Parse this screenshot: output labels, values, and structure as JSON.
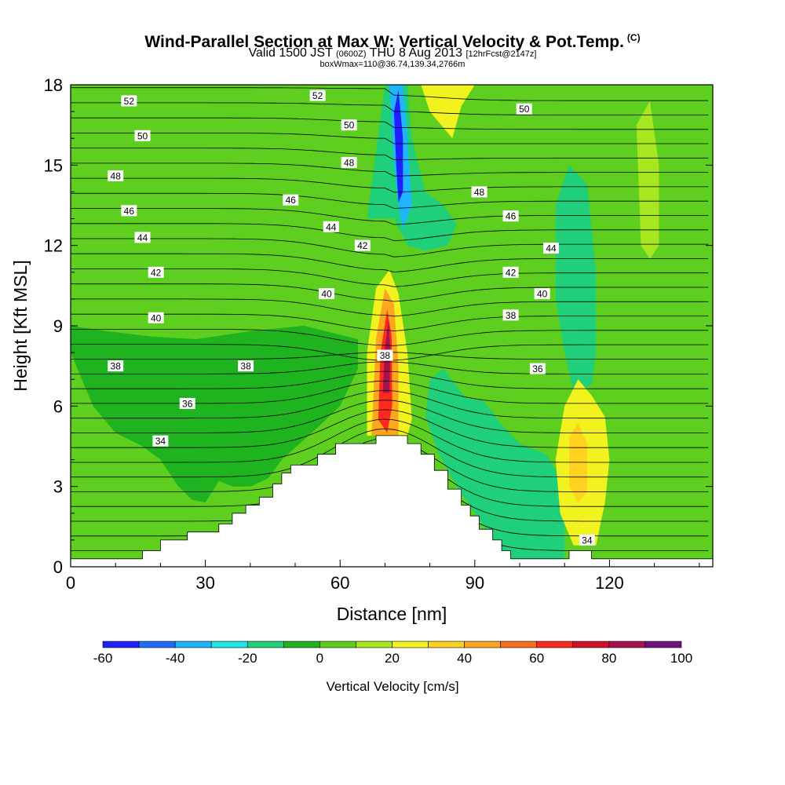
{
  "title": "Wind-Parallel Section at Max W: Vertical Velocity & Pot.Temp.",
  "title_tag": "(C)",
  "subtitle_a": "Valid 1500 JST",
  "subtitle_b": "(0600Z)",
  "subtitle_c": "THU 8 Aug 2013",
  "subtitle_d": "[12hrFcst@2147z]",
  "subtitle2": "boxWmax=110@36.74,139.34,2766m",
  "chart_data": {
    "type": "heatmap",
    "description_fields": "filled contours of vertical velocity with overlaid potential temperature contour lines",
    "xlabel": "Distance [nm]",
    "ylabel": "Height [Kft MSL]",
    "xlim": [
      0,
      143
    ],
    "ylim": [
      0,
      18
    ],
    "xticks": [
      0,
      30,
      60,
      90,
      120
    ],
    "yticks": [
      0,
      3,
      6,
      9,
      12,
      15,
      18
    ],
    "colorbar": {
      "title": "Vertical Velocity [cm/s]",
      "levels": [
        -60,
        -50,
        -40,
        -30,
        -20,
        -10,
        0,
        10,
        20,
        30,
        40,
        50,
        60,
        70,
        80,
        90,
        100
      ],
      "tick_labels": [
        "-60",
        "-40",
        "-20",
        "0",
        "20",
        "40",
        "60",
        "80",
        "100"
      ],
      "colors": [
        "#1f1fff",
        "#1f6cff",
        "#1fb4ff",
        "#1fe6e6",
        "#1fcf7a",
        "#1fb41f",
        "#5fcf1f",
        "#a8e61f",
        "#f2f21f",
        "#ffd21f",
        "#ffa61f",
        "#ff6e1f",
        "#ff2a1f",
        "#d2102a",
        "#a8104f",
        "#6e1080"
      ]
    },
    "theta_contour_labels": [
      {
        "value": "52",
        "x": 13,
        "y": 17.4
      },
      {
        "value": "52",
        "x": 55,
        "y": 17.6
      },
      {
        "value": "50",
        "x": 16,
        "y": 16.1
      },
      {
        "value": "50",
        "x": 62,
        "y": 16.5
      },
      {
        "value": "50",
        "x": 101,
        "y": 17.1
      },
      {
        "value": "48",
        "x": 10,
        "y": 14.6
      },
      {
        "value": "48",
        "x": 62,
        "y": 15.1
      },
      {
        "value": "48",
        "x": 91,
        "y": 14.0
      },
      {
        "value": "46",
        "x": 13,
        "y": 13.3
      },
      {
        "value": "46",
        "x": 49,
        "y": 13.7
      },
      {
        "value": "46",
        "x": 98,
        "y": 13.1
      },
      {
        "value": "44",
        "x": 16,
        "y": 12.3
      },
      {
        "value": "44",
        "x": 58,
        "y": 12.7
      },
      {
        "value": "44",
        "x": 107,
        "y": 11.9
      },
      {
        "value": "42",
        "x": 65,
        "y": 12.0
      },
      {
        "value": "42",
        "x": 19,
        "y": 11.0
      },
      {
        "value": "42",
        "x": 98,
        "y": 11.0
      },
      {
        "value": "40",
        "x": 57,
        "y": 10.2
      },
      {
        "value": "40",
        "x": 19,
        "y": 9.3
      },
      {
        "value": "40",
        "x": 105,
        "y": 10.2
      },
      {
        "value": "38",
        "x": 98,
        "y": 9.4
      },
      {
        "value": "38",
        "x": 10,
        "y": 7.5
      },
      {
        "value": "38",
        "x": 39,
        "y": 7.5
      },
      {
        "value": "38",
        "x": 70,
        "y": 7.9
      },
      {
        "value": "36",
        "x": 104,
        "y": 7.4
      },
      {
        "value": "36",
        "x": 26,
        "y": 6.1
      },
      {
        "value": "34",
        "x": 20,
        "y": 4.7
      },
      {
        "value": "34",
        "x": 115,
        "y": 1.0
      }
    ],
    "terrain_profile_kft": [
      [
        0,
        0.3
      ],
      [
        16,
        0.3
      ],
      [
        16,
        0.6
      ],
      [
        20,
        0.6
      ],
      [
        20,
        1.0
      ],
      [
        26,
        1.0
      ],
      [
        26,
        1.3
      ],
      [
        33,
        1.3
      ],
      [
        33,
        1.6
      ],
      [
        36,
        1.6
      ],
      [
        36,
        2.0
      ],
      [
        39,
        2.0
      ],
      [
        39,
        2.3
      ],
      [
        42,
        2.3
      ],
      [
        42,
        2.6
      ],
      [
        45,
        2.6
      ],
      [
        45,
        3.1
      ],
      [
        47,
        3.1
      ],
      [
        47,
        3.5
      ],
      [
        49,
        3.5
      ],
      [
        49,
        3.8
      ],
      [
        55,
        3.8
      ],
      [
        55,
        4.2
      ],
      [
        59,
        4.2
      ],
      [
        59,
        4.6
      ],
      [
        68,
        4.6
      ],
      [
        68,
        4.9
      ],
      [
        75,
        4.9
      ],
      [
        75,
        4.6
      ],
      [
        78,
        4.6
      ],
      [
        78,
        4.2
      ],
      [
        81,
        4.2
      ],
      [
        81,
        3.6
      ],
      [
        84,
        3.6
      ],
      [
        84,
        2.9
      ],
      [
        87,
        2.9
      ],
      [
        87,
        2.3
      ],
      [
        89,
        2.3
      ],
      [
        89,
        1.9
      ],
      [
        91,
        1.9
      ],
      [
        91,
        1.4
      ],
      [
        94,
        1.4
      ],
      [
        94,
        1.0
      ],
      [
        96,
        1.0
      ],
      [
        96,
        0.6
      ],
      [
        98,
        0.6
      ],
      [
        98,
        0.3
      ],
      [
        111,
        0.3
      ],
      [
        111,
        0.6
      ],
      [
        116,
        0.6
      ],
      [
        116,
        0.3
      ],
      [
        143,
        0.3
      ]
    ]
  }
}
